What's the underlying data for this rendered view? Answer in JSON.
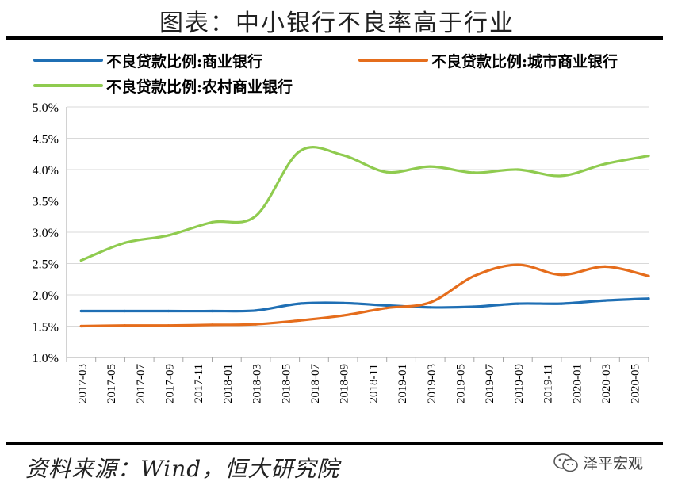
{
  "title": "图表：中小银行不良率高于行业",
  "source": "资料来源：Wind，恒大研究院",
  "watermark": {
    "label": "泽平宏观",
    "icon": "wechat-icon"
  },
  "colors": {
    "commercial": "#1f6fb4",
    "city": "#e56d1c",
    "rural": "#8fcb4f",
    "grid": "#d9d9d9",
    "axis": "#a6a6a6",
    "rule": "#000000"
  },
  "chart_data": {
    "type": "line",
    "title": "中小银行不良率高于行业",
    "xlabel": "",
    "ylabel": "",
    "ylim": [
      1.0,
      5.0
    ],
    "y_ticks": [
      1.0,
      1.5,
      2.0,
      2.5,
      3.0,
      3.5,
      4.0,
      4.5,
      5.0
    ],
    "y_tick_labels": [
      "1.0%",
      "1.5%",
      "2.0%",
      "2.5%",
      "3.0%",
      "3.5%",
      "4.0%",
      "4.5%",
      "5.0%"
    ],
    "x": [
      "2017-03",
      "2017-06",
      "2017-09",
      "2017-12",
      "2018-03",
      "2018-06",
      "2018-09",
      "2018-12",
      "2019-03",
      "2019-06",
      "2019-09",
      "2019-12",
      "2020-03",
      "2020-06"
    ],
    "x_tick_labels": [
      "2017-03",
      "2017-05",
      "2017-07",
      "2017-09",
      "2017-11",
      "2018-01",
      "2018-03",
      "2018-05",
      "2018-07",
      "2018-09",
      "2018-11",
      "2019-01",
      "2019-03",
      "2019-05",
      "2019-07",
      "2019-09",
      "2019-11",
      "2020-01",
      "2020-03",
      "2020-05"
    ],
    "legend_position": "top",
    "series": [
      {
        "name": "不良贷款比例:商业银行",
        "key": "commercial",
        "values": [
          1.74,
          1.74,
          1.74,
          1.74,
          1.75,
          1.86,
          1.87,
          1.83,
          1.8,
          1.81,
          1.86,
          1.86,
          1.91,
          1.94
        ]
      },
      {
        "name": "不良贷款比例:城市商业银行",
        "key": "city",
        "values": [
          1.5,
          1.51,
          1.51,
          1.52,
          1.53,
          1.59,
          1.67,
          1.79,
          1.88,
          2.3,
          2.48,
          2.32,
          2.45,
          2.3
        ]
      },
      {
        "name": "不良贷款比例:农村商业银行",
        "key": "rural",
        "values": [
          2.55,
          2.83,
          2.95,
          3.16,
          3.26,
          4.29,
          4.23,
          3.96,
          4.05,
          3.95,
          4.0,
          3.9,
          4.09,
          4.22
        ]
      }
    ]
  }
}
